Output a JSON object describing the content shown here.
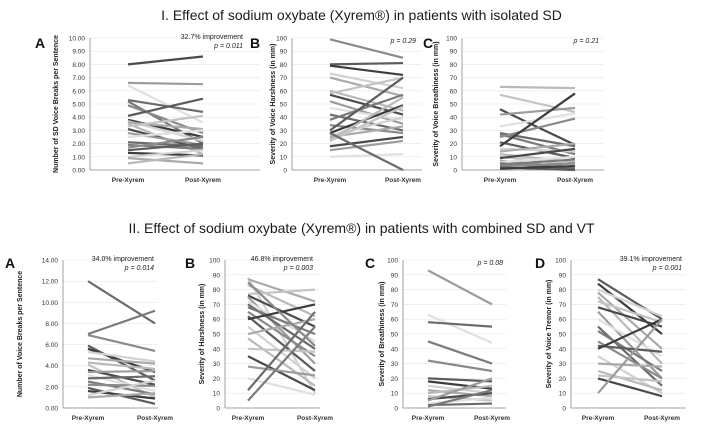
{
  "titles": {
    "section1": "I. Effect of sodium oxybate (Xyrem®) in patients with isolated SD",
    "section2": "II. Effect of sodium oxybate (Xyrem®) in patients with combined SD and VT"
  },
  "chart_data": [
    {
      "panel": "A",
      "section": 1,
      "type": "line",
      "ylabel": "Number of SD Voice Breaks per Sentence",
      "categories": [
        "Pre-Xyrem",
        "Post-Xyrem"
      ],
      "ylim": [
        0,
        10
      ],
      "ystep": 1,
      "decimals": 2,
      "annotation": "32.7% improvement",
      "pvalue": "p = 0.011",
      "series": [
        [
          8.0,
          8.6
        ],
        [
          6.6,
          6.5
        ],
        [
          6.4,
          3.6
        ],
        [
          5.3,
          4.4
        ],
        [
          5.2,
          2.0
        ],
        [
          4.9,
          2.8
        ],
        [
          4.1,
          5.4
        ],
        [
          3.8,
          2.5
        ],
        [
          3.7,
          2.2
        ],
        [
          3.6,
          3.1
        ],
        [
          3.5,
          1.2
        ],
        [
          3.3,
          4.1
        ],
        [
          3.1,
          1.6
        ],
        [
          2.8,
          1.9
        ],
        [
          2.5,
          3.0
        ],
        [
          2.1,
          1.8
        ],
        [
          1.9,
          1.6
        ],
        [
          1.7,
          2.5
        ],
        [
          1.5,
          2.0
        ],
        [
          1.3,
          1.1
        ],
        [
          1.0,
          1.5
        ],
        [
          0.9,
          0.5
        ],
        [
          0.5,
          1.2
        ]
      ]
    },
    {
      "panel": "B",
      "section": 1,
      "type": "line",
      "ylabel": "Severity of Voice Harshness (in mm)",
      "categories": [
        "Pre-Xyrem",
        "Post-Xyrem"
      ],
      "ylim": [
        0,
        100
      ],
      "ystep": 10,
      "decimals": 0,
      "annotation": "",
      "pvalue": "p = 0.29",
      "series": [
        [
          99,
          85
        ],
        [
          80,
          81
        ],
        [
          79,
          72
        ],
        [
          73,
          62
        ],
        [
          70,
          56
        ],
        [
          60,
          45
        ],
        [
          58,
          70
        ],
        [
          57,
          42
        ],
        [
          52,
          35
        ],
        [
          47,
          38
        ],
        [
          42,
          30
        ],
        [
          38,
          57
        ],
        [
          34,
          28
        ],
        [
          30,
          70
        ],
        [
          28,
          49
        ],
        [
          26,
          40
        ],
        [
          25,
          33
        ],
        [
          23,
          55
        ],
        [
          22,
          48
        ],
        [
          18,
          25
        ],
        [
          15,
          22
        ],
        [
          10,
          12
        ],
        [
          28,
          0
        ]
      ]
    },
    {
      "panel": "C",
      "section": 1,
      "type": "line",
      "ylabel": "Severity of Voice Breathiness (in mm)",
      "categories": [
        "Pre-Xyrem",
        "Post-Xyrem"
      ],
      "ylim": [
        0,
        100
      ],
      "ystep": 10,
      "decimals": 0,
      "annotation": "",
      "pvalue": "p = 0.21",
      "series": [
        [
          63,
          62
        ],
        [
          57,
          44
        ],
        [
          46,
          19
        ],
        [
          42,
          47
        ],
        [
          33,
          43
        ],
        [
          28,
          18
        ],
        [
          27,
          12
        ],
        [
          25,
          39
        ],
        [
          21,
          9
        ],
        [
          18,
          58
        ],
        [
          16,
          14
        ],
        [
          14,
          20
        ],
        [
          12,
          6
        ],
        [
          10,
          4
        ],
        [
          9,
          16
        ],
        [
          7,
          2
        ],
        [
          6,
          10
        ],
        [
          5,
          1
        ],
        [
          4,
          8
        ],
        [
          3,
          5
        ],
        [
          2,
          0
        ],
        [
          1,
          3
        ]
      ]
    },
    {
      "panel": "A",
      "section": 2,
      "type": "line",
      "ylabel": "Number of Voice Breaks per Sentence",
      "categories": [
        "Pre-Xyrem",
        "Post-Xyrem"
      ],
      "ylim": [
        0,
        14
      ],
      "ystep": 2,
      "decimals": 2,
      "annotation": "34.0% improvement",
      "pvalue": "p = 0.014",
      "series": [
        [
          12.0,
          8.0
        ],
        [
          7.0,
          9.2
        ],
        [
          6.9,
          5.4
        ],
        [
          5.9,
          2.6
        ],
        [
          5.6,
          3.4
        ],
        [
          5.3,
          4.4
        ],
        [
          4.7,
          4.2
        ],
        [
          4.3,
          3.7
        ],
        [
          4.1,
          1.0
        ],
        [
          3.6,
          2.2
        ],
        [
          3.4,
          3.5
        ],
        [
          3.1,
          1.6
        ],
        [
          2.8,
          3.0
        ],
        [
          2.5,
          1.3
        ],
        [
          2.2,
          2.1
        ],
        [
          1.9,
          0.4
        ],
        [
          1.6,
          0.9
        ],
        [
          1.2,
          2.6
        ],
        [
          1.0,
          1.4
        ]
      ]
    },
    {
      "panel": "B",
      "section": 2,
      "type": "line",
      "ylabel": "Severity of Harshness (in mm)",
      "categories": [
        "Pre-Xyrem",
        "Post-Xyrem"
      ],
      "ylim": [
        0,
        100
      ],
      "ystep": 10,
      "decimals": 0,
      "annotation": "46.8% improvement",
      "pvalue": "p = 0.003",
      "series": [
        [
          88,
          10
        ],
        [
          87,
          72
        ],
        [
          83,
          62
        ],
        [
          77,
          80
        ],
        [
          76,
          55
        ],
        [
          75,
          30
        ],
        [
          72,
          45
        ],
        [
          70,
          40
        ],
        [
          68,
          50
        ],
        [
          65,
          35
        ],
        [
          62,
          25
        ],
        [
          60,
          70
        ],
        [
          55,
          20
        ],
        [
          50,
          60
        ],
        [
          47,
          15
        ],
        [
          40,
          38
        ],
        [
          35,
          12
        ],
        [
          28,
          22
        ],
        [
          20,
          9
        ],
        [
          12,
          65
        ],
        [
          5,
          55
        ],
        [
          85,
          42
        ]
      ]
    },
    {
      "panel": "C",
      "section": 2,
      "type": "line",
      "ylabel": "Severity of Breathiness (in mm)",
      "categories": [
        "Pre-Xyrem",
        "Post-Xyrem"
      ],
      "ylim": [
        0,
        100
      ],
      "ystep": 10,
      "decimals": 0,
      "annotation": "",
      "pvalue": "p = 0.08",
      "series": [
        [
          93,
          70
        ],
        [
          63,
          44
        ],
        [
          58,
          55
        ],
        [
          45,
          30
        ],
        [
          32,
          25
        ],
        [
          20,
          18
        ],
        [
          18,
          13
        ],
        [
          15,
          10
        ],
        [
          12,
          8
        ],
        [
          10,
          15
        ],
        [
          8,
          5
        ],
        [
          6,
          10
        ],
        [
          5,
          20
        ],
        [
          3,
          7
        ],
        [
          2,
          3
        ],
        [
          1,
          12
        ]
      ]
    },
    {
      "panel": "D",
      "section": 2,
      "type": "line",
      "ylabel": "Severity of Voice Tremor (in mm)",
      "categories": [
        "Pre-Xyrem",
        "Post-Xyrem"
      ],
      "ylim": [
        0,
        100
      ],
      "ystep": 10,
      "decimals": 0,
      "annotation": "39.1% improvement",
      "pvalue": "p = 0.001",
      "series": [
        [
          87,
          60
        ],
        [
          84,
          50
        ],
        [
          80,
          62
        ],
        [
          78,
          40
        ],
        [
          75,
          30
        ],
        [
          72,
          58
        ],
        [
          68,
          55
        ],
        [
          65,
          20
        ],
        [
          60,
          35
        ],
        [
          55,
          15
        ],
        [
          52,
          25
        ],
        [
          45,
          20
        ],
        [
          42,
          38
        ],
        [
          40,
          60
        ],
        [
          35,
          10
        ],
        [
          30,
          28
        ],
        [
          25,
          12
        ],
        [
          22,
          18
        ],
        [
          20,
          8
        ],
        [
          10,
          60
        ]
      ]
    }
  ]
}
